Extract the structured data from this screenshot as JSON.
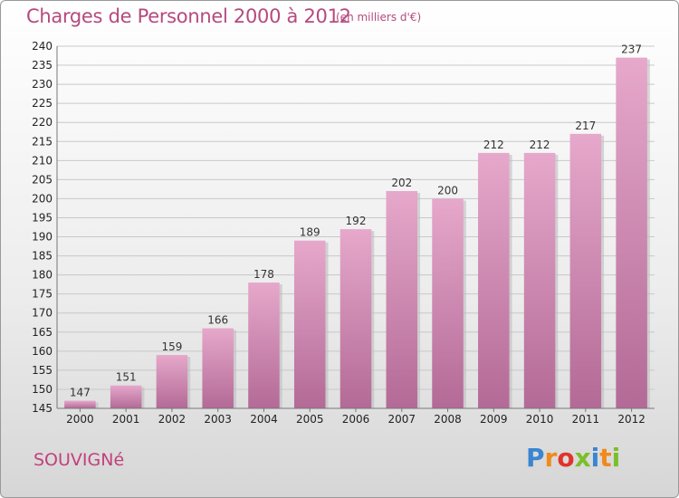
{
  "title": "Charges de Personnel 2000 à 2012",
  "unit_note": "(en milliers d'€)",
  "commune": "SOUVIGNé",
  "logo": {
    "letters": [
      {
        "char": "P",
        "color": "#3a86d0"
      },
      {
        "char": "r",
        "color": "#f08a1c"
      },
      {
        "char": "o",
        "color": "#e0342a"
      },
      {
        "char": "x",
        "color": "#7bbf2a"
      },
      {
        "char": "i",
        "color": "#3a86d0"
      },
      {
        "char": "t",
        "color": "#f08a1c"
      },
      {
        "char": "i",
        "color": "#7bbf2a"
      }
    ]
  },
  "colors": {
    "bar_top": "#e6a8cb",
    "bar_bottom": "#b36a96",
    "accent": "#b54a7e"
  },
  "chart_data": {
    "type": "bar",
    "categories": [
      "2000",
      "2001",
      "2002",
      "2003",
      "2004",
      "2005",
      "2006",
      "2007",
      "2008",
      "2009",
      "2010",
      "2011",
      "2012"
    ],
    "values": [
      147,
      151,
      159,
      166,
      178,
      189,
      192,
      202,
      200,
      212,
      212,
      217,
      237
    ],
    "ylim": [
      145,
      240
    ],
    "yticks": [
      145,
      150,
      155,
      160,
      165,
      170,
      175,
      180,
      185,
      190,
      195,
      200,
      205,
      210,
      215,
      220,
      225,
      230,
      235,
      240
    ],
    "grid": true,
    "legend": "none"
  }
}
